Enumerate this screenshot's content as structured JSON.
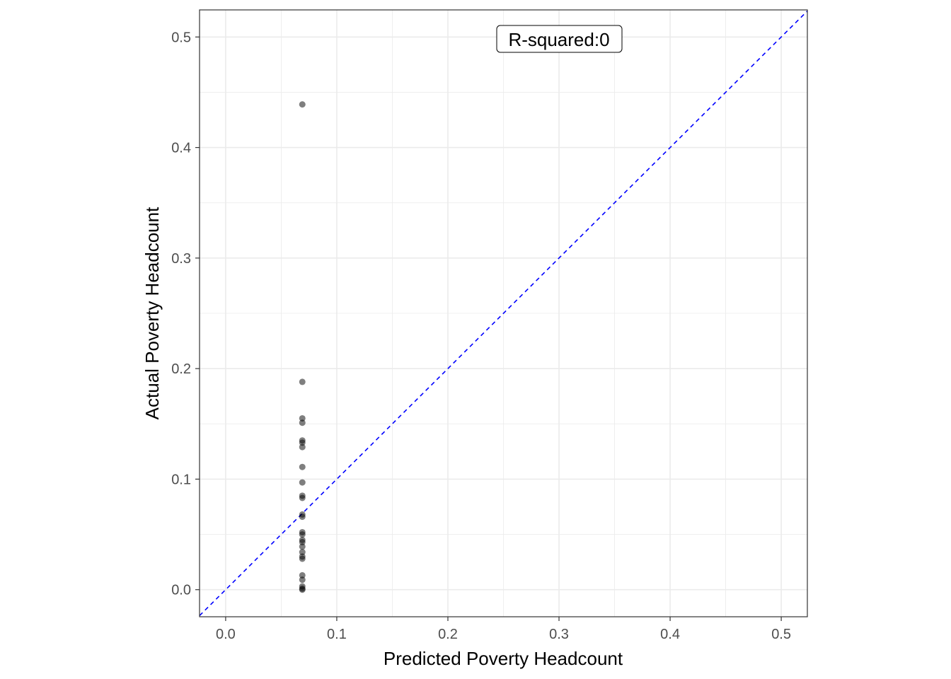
{
  "chart_data": {
    "type": "scatter",
    "title": "",
    "xlabel": "Predicted Poverty Headcount",
    "ylabel": "Actual Poverty Headcount",
    "xlim": [
      -0.0235,
      0.5235
    ],
    "ylim": [
      -0.0245,
      0.5245
    ],
    "x_ticks": [
      0.0,
      0.1,
      0.2,
      0.3,
      0.4,
      0.5
    ],
    "x_tick_labels": [
      "0.0",
      "0.1",
      "0.2",
      "0.3",
      "0.4",
      "0.5"
    ],
    "y_ticks": [
      0.0,
      0.1,
      0.2,
      0.3,
      0.4,
      0.5
    ],
    "y_tick_labels": [
      "0.0",
      "0.1",
      "0.2",
      "0.3",
      "0.4",
      "0.5"
    ],
    "grid": true,
    "annotation": "R-squared:0",
    "reference_line": {
      "slope": 1,
      "intercept": 0,
      "style": "dashed",
      "color": "#0000ff"
    },
    "point_color": "#000000",
    "point_alpha": 0.5,
    "points": [
      {
        "x": 0.069,
        "y": 0.439
      },
      {
        "x": 0.069,
        "y": 0.188
      },
      {
        "x": 0.069,
        "y": 0.155
      },
      {
        "x": 0.069,
        "y": 0.151
      },
      {
        "x": 0.069,
        "y": 0.135
      },
      {
        "x": 0.069,
        "y": 0.133
      },
      {
        "x": 0.069,
        "y": 0.129
      },
      {
        "x": 0.069,
        "y": 0.111
      },
      {
        "x": 0.069,
        "y": 0.097
      },
      {
        "x": 0.069,
        "y": 0.085
      },
      {
        "x": 0.069,
        "y": 0.083
      },
      {
        "x": 0.069,
        "y": 0.068
      },
      {
        "x": 0.069,
        "y": 0.066
      },
      {
        "x": 0.069,
        "y": 0.052
      },
      {
        "x": 0.069,
        "y": 0.05
      },
      {
        "x": 0.069,
        "y": 0.045
      },
      {
        "x": 0.069,
        "y": 0.043
      },
      {
        "x": 0.069,
        "y": 0.039
      },
      {
        "x": 0.069,
        "y": 0.034
      },
      {
        "x": 0.069,
        "y": 0.03
      },
      {
        "x": 0.069,
        "y": 0.028
      },
      {
        "x": 0.069,
        "y": 0.013
      },
      {
        "x": 0.069,
        "y": 0.009
      },
      {
        "x": 0.069,
        "y": 0.003
      },
      {
        "x": 0.069,
        "y": 0.001
      },
      {
        "x": 0.069,
        "y": 0.0
      }
    ]
  }
}
